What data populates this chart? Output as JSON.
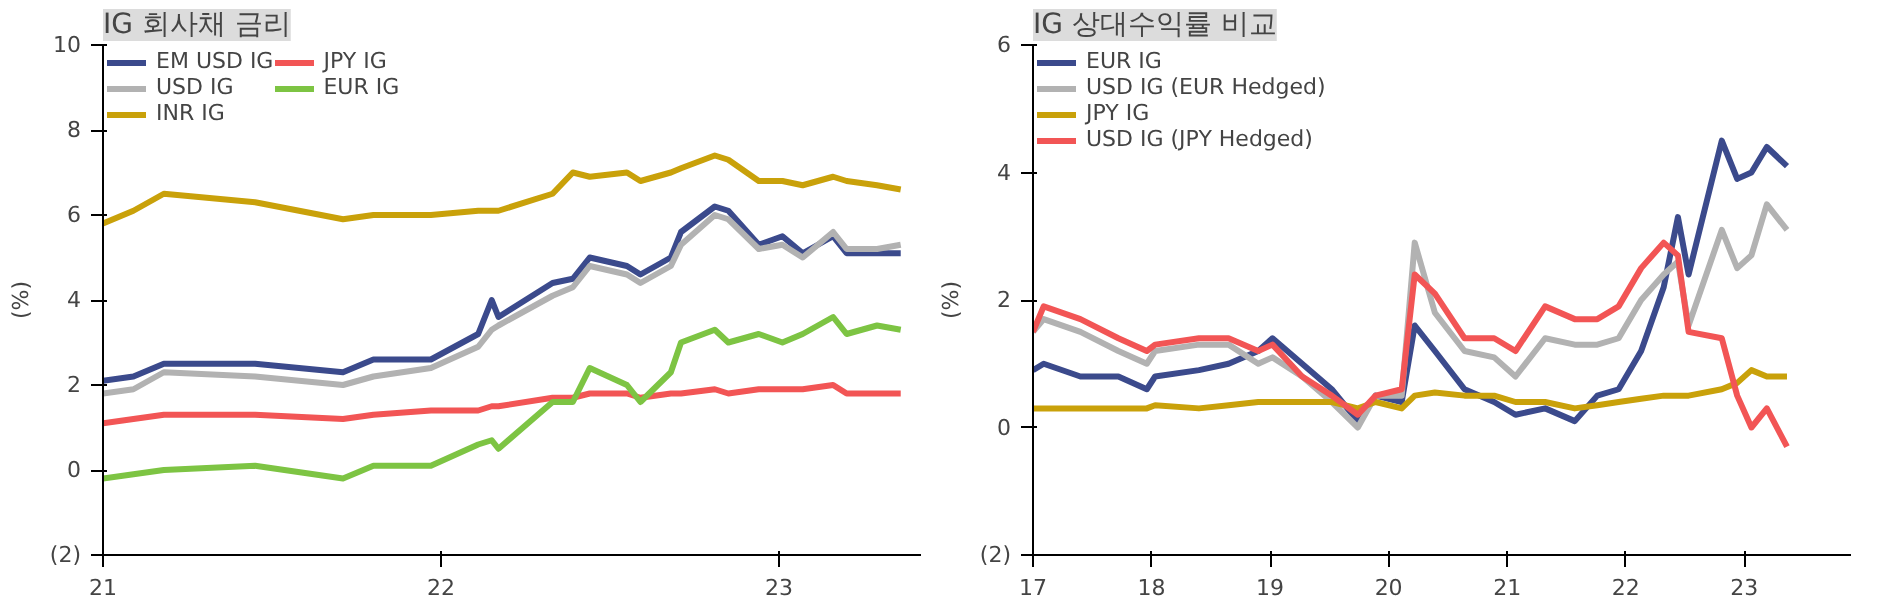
{
  "chart_data": [
    {
      "type": "line",
      "title": "IG 회사채 금리",
      "ylabel": "(%)",
      "legend": "top left",
      "grid": false,
      "line_style": "solid",
      "marker": "none",
      "x": [
        2021.0,
        2021.09,
        2021.18,
        2021.45,
        2021.71,
        2021.8,
        2021.97,
        2022.11,
        2022.15,
        2022.17,
        2022.33,
        2022.39,
        2022.44,
        2022.55,
        2022.59,
        2022.68,
        2022.71,
        2022.81,
        2022.85,
        2022.94,
        2023.01,
        2023.07,
        2023.16,
        2023.2,
        2023.29,
        2023.36
      ],
      "xlim": [
        2021,
        2023.42
      ],
      "xticks": [
        {
          "value": 2021,
          "label": "21"
        },
        {
          "value": 2022,
          "label": "22"
        },
        {
          "value": 2023,
          "label": "23"
        }
      ],
      "ylim": [
        -2,
        10
      ],
      "yticks": [
        {
          "value": -2,
          "label": "(2)"
        },
        0,
        2,
        4,
        6,
        8,
        10
      ],
      "series": [
        {
          "name": "EM USD IG",
          "color": "#3b4a8c",
          "values": [
            2.1,
            2.2,
            2.5,
            2.5,
            2.3,
            2.6,
            2.6,
            3.2,
            4.0,
            3.6,
            4.4,
            4.5,
            5.0,
            4.8,
            4.6,
            5.0,
            5.6,
            6.2,
            6.1,
            5.3,
            5.5,
            5.1,
            5.5,
            5.1,
            5.1,
            5.1
          ]
        },
        {
          "name": "USD IG",
          "color": "#b2b2b2",
          "values": [
            1.8,
            1.9,
            2.3,
            2.2,
            2.0,
            2.2,
            2.4,
            2.9,
            3.3,
            3.4,
            4.1,
            4.3,
            4.8,
            4.6,
            4.4,
            4.8,
            5.3,
            6.0,
            5.9,
            5.2,
            5.3,
            5.0,
            5.6,
            5.2,
            5.2,
            5.3
          ]
        },
        {
          "name": "INR IG",
          "color": "#c9a10a",
          "values": [
            5.8,
            6.1,
            6.5,
            6.3,
            5.9,
            6.0,
            6.0,
            6.1,
            6.1,
            6.1,
            6.5,
            7.0,
            6.9,
            7.0,
            6.8,
            7.0,
            7.1,
            7.4,
            7.3,
            6.8,
            6.8,
            6.7,
            6.9,
            6.8,
            6.7,
            6.6
          ]
        },
        {
          "name": "JPY IG",
          "color": "#f25555",
          "values": [
            1.1,
            1.2,
            1.3,
            1.3,
            1.2,
            1.3,
            1.4,
            1.4,
            1.5,
            1.5,
            1.7,
            1.7,
            1.8,
            1.8,
            1.7,
            1.8,
            1.8,
            1.9,
            1.8,
            1.9,
            1.9,
            1.9,
            2.0,
            1.8,
            1.8,
            1.8
          ]
        },
        {
          "name": "EUR IG",
          "color": "#7dc443",
          "values": [
            -0.2,
            -0.1,
            0.0,
            0.1,
            -0.2,
            0.1,
            0.1,
            0.6,
            0.7,
            0.5,
            1.6,
            1.6,
            2.4,
            2.0,
            1.6,
            2.3,
            3.0,
            3.3,
            3.0,
            3.2,
            3.0,
            3.2,
            3.6,
            3.2,
            3.4,
            3.3
          ]
        }
      ]
    },
    {
      "type": "line",
      "title": "IG 상대수익률 비교",
      "ylabel": "(%)",
      "legend": "top left",
      "grid": false,
      "line_style": "solid",
      "marker": "none",
      "x": [
        2017.0,
        2017.09,
        2017.4,
        2017.72,
        2017.96,
        2018.03,
        2018.4,
        2018.65,
        2018.9,
        2019.02,
        2019.27,
        2019.52,
        2019.74,
        2019.89,
        2020.11,
        2020.22,
        2020.39,
        2020.64,
        2020.89,
        2021.07,
        2021.32,
        2021.57,
        2021.76,
        2021.94,
        2022.13,
        2022.32,
        2022.44,
        2022.53,
        2022.81,
        2022.94,
        2023.06,
        2023.19,
        2023.36
      ],
      "xlim": [
        2017,
        2023.9
      ],
      "xticks": [
        {
          "value": 2017,
          "label": "17"
        },
        {
          "value": 2018,
          "label": "18"
        },
        {
          "value": 2019,
          "label": "19"
        },
        {
          "value": 2020,
          "label": "20"
        },
        {
          "value": 2021,
          "label": "21"
        },
        {
          "value": 2022,
          "label": "22"
        },
        {
          "value": 2023,
          "label": "23"
        }
      ],
      "ylim": [
        -2,
        6
      ],
      "yticks": [
        {
          "value": -2,
          "label": "(2)"
        },
        0,
        2,
        4,
        6
      ],
      "series": [
        {
          "name": "EUR IG",
          "color": "#3b4a8c",
          "values": [
            0.9,
            1.0,
            0.8,
            0.8,
            0.6,
            0.8,
            0.9,
            1.0,
            1.2,
            1.4,
            1.0,
            0.6,
            0.1,
            0.5,
            0.4,
            1.6,
            1.2,
            0.6,
            0.4,
            0.2,
            0.3,
            0.1,
            0.5,
            0.6,
            1.2,
            2.2,
            3.3,
            2.4,
            4.5,
            3.9,
            4.0,
            4.4,
            4.1
          ]
        },
        {
          "name": "USD IG (EUR Hedged)",
          "color": "#b2b2b2",
          "values": [
            1.5,
            1.7,
            1.5,
            1.2,
            1.0,
            1.2,
            1.3,
            1.3,
            1.0,
            1.1,
            0.8,
            0.4,
            0.0,
            0.5,
            0.5,
            2.9,
            1.8,
            1.2,
            1.1,
            0.8,
            1.4,
            1.3,
            1.3,
            1.4,
            2.0,
            2.4,
            2.6,
            1.6,
            3.1,
            2.5,
            2.7,
            3.5,
            3.1
          ]
        },
        {
          "name": "JPY IG",
          "color": "#c9a10a",
          "values": [
            0.3,
            0.3,
            0.3,
            0.3,
            0.3,
            0.35,
            0.3,
            0.35,
            0.4,
            0.4,
            0.4,
            0.4,
            0.3,
            0.4,
            0.3,
            0.5,
            0.55,
            0.5,
            0.5,
            0.4,
            0.4,
            0.3,
            0.35,
            0.4,
            0.45,
            0.5,
            0.5,
            0.5,
            0.6,
            0.7,
            0.9,
            0.8,
            0.8
          ]
        },
        {
          "name": "USD IG (JPY Hedged)",
          "color": "#f25555",
          "values": [
            1.5,
            1.9,
            1.7,
            1.4,
            1.2,
            1.3,
            1.4,
            1.4,
            1.2,
            1.3,
            0.8,
            0.5,
            0.2,
            0.5,
            0.6,
            2.4,
            2.1,
            1.4,
            1.4,
            1.2,
            1.9,
            1.7,
            1.7,
            1.9,
            2.5,
            2.9,
            2.7,
            1.5,
            1.4,
            0.5,
            0.0,
            0.3,
            -0.3
          ]
        }
      ]
    }
  ]
}
